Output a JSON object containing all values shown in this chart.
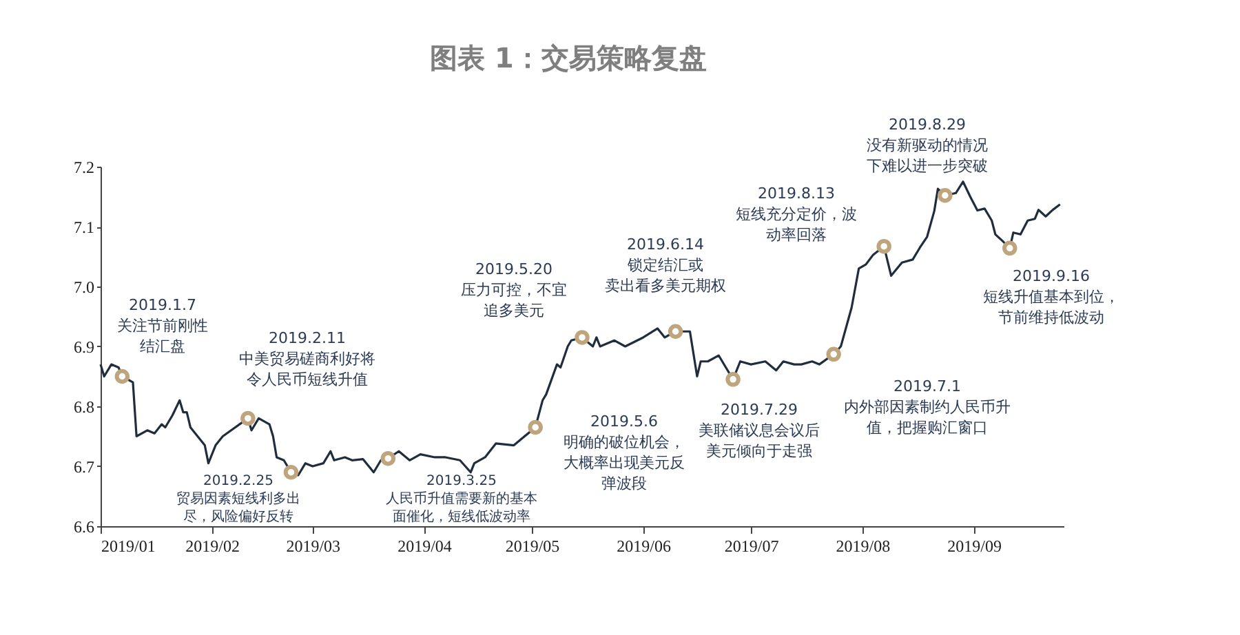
{
  "chart_data": {
    "type": "line",
    "title": "图表 1：交易策略复盘",
    "x": [
      "2019-01-01",
      "2019-01-02",
      "2019-01-04",
      "2019-01-06",
      "2019-01-07",
      "2019-01-10",
      "2019-01-11",
      "2019-01-14",
      "2019-01-16",
      "2019-01-18",
      "2019-01-19",
      "2019-01-21",
      "2019-01-23",
      "2019-01-24",
      "2019-01-25",
      "2019-01-26",
      "2019-01-30",
      "2019-01-31",
      "2019-02-02",
      "2019-02-04",
      "2019-02-11",
      "2019-02-12",
      "2019-02-14",
      "2019-02-17",
      "2019-02-18",
      "2019-02-19",
      "2019-02-21",
      "2019-02-23",
      "2019-02-25",
      "2019-02-27",
      "2019-03-01",
      "2019-03-04",
      "2019-03-06",
      "2019-03-07",
      "2019-03-10",
      "2019-03-12",
      "2019-03-15",
      "2019-03-18",
      "2019-03-20",
      "2019-03-22",
      "2019-03-25",
      "2019-03-28",
      "2019-03-31",
      "2019-04-04",
      "2019-04-07",
      "2019-04-11",
      "2019-04-14",
      "2019-04-15",
      "2019-04-18",
      "2019-04-21",
      "2019-04-26",
      "2019-05-02",
      "2019-05-04",
      "2019-05-05",
      "2019-05-08",
      "2019-05-09",
      "2019-05-11",
      "2019-05-12",
      "2019-05-15",
      "2019-05-18",
      "2019-05-19",
      "2019-05-20",
      "2019-05-24",
      "2019-05-27",
      "2019-06-01",
      "2019-06-05",
      "2019-06-07",
      "2019-06-10",
      "2019-06-14",
      "2019-06-16",
      "2019-06-17",
      "2019-06-19",
      "2019-06-22",
      "2019-06-24",
      "2019-06-26",
      "2019-06-28",
      "2019-07-01",
      "2019-07-05",
      "2019-07-08",
      "2019-07-10",
      "2019-07-13",
      "2019-07-15",
      "2019-07-18",
      "2019-07-20",
      "2019-07-24",
      "2019-07-26",
      "2019-07-29",
      "2019-07-31",
      "2019-08-02",
      "2019-08-04",
      "2019-08-07",
      "2019-08-09",
      "2019-08-12",
      "2019-08-15",
      "2019-08-17",
      "2019-08-19",
      "2019-08-21",
      "2019-08-22",
      "2019-08-24",
      "2019-08-27",
      "2019-08-29",
      "2019-08-31",
      "2019-09-02",
      "2019-09-04",
      "2019-09-06",
      "2019-09-07",
      "2019-09-09",
      "2019-09-11",
      "2019-09-12",
      "2019-09-14",
      "2019-09-16",
      "2019-09-18",
      "2019-09-19",
      "2019-09-21",
      "2019-09-23",
      "2019-09-25"
    ],
    "series": [
      {
        "color": "#1f2d3d",
        "values": [
          6.87,
          6.85,
          6.87,
          6.865,
          6.85,
          6.84,
          6.75,
          6.76,
          6.755,
          6.77,
          6.765,
          6.785,
          6.81,
          6.79,
          6.79,
          6.765,
          6.735,
          6.705,
          6.735,
          6.75,
          6.78,
          6.76,
          6.78,
          6.77,
          6.75,
          6.715,
          6.71,
          6.69,
          6.685,
          6.705,
          6.7,
          6.705,
          6.725,
          6.71,
          6.715,
          6.71,
          6.712,
          6.69,
          6.71,
          6.713,
          6.725,
          6.71,
          6.72,
          6.715,
          6.715,
          6.71,
          6.69,
          6.705,
          6.715,
          6.738,
          6.735,
          6.765,
          6.81,
          6.82,
          6.87,
          6.865,
          6.9,
          6.91,
          6.915,
          6.9,
          6.915,
          6.9,
          6.91,
          6.9,
          6.915,
          6.93,
          6.915,
          6.925,
          6.925,
          6.85,
          6.875,
          6.875,
          6.885,
          6.865,
          6.845,
          6.875,
          6.87,
          6.875,
          6.86,
          6.875,
          6.87,
          6.87,
          6.875,
          6.87,
          6.887,
          6.9,
          6.965,
          7.03,
          7.037,
          7.053,
          7.067,
          7.018,
          7.04,
          7.045,
          7.065,
          7.083,
          7.126,
          7.163,
          7.152,
          7.156,
          7.175,
          7.15,
          7.127,
          7.13,
          7.11,
          7.087,
          7.076,
          7.064,
          7.09,
          7.087,
          7.11,
          7.113,
          7.128,
          7.117,
          7.128,
          7.137
        ]
      }
    ],
    "xlim": [
      "2019-01-01",
      "2019-09-26"
    ],
    "xticks": [
      {
        "value": "2019-01-01",
        "label": "2019/01"
      },
      {
        "value": "2019-02-01",
        "label": "2019/02"
      },
      {
        "value": "2019-03-01",
        "label": "2019/03"
      },
      {
        "value": "2019-04-01",
        "label": "2019/04"
      },
      {
        "value": "2019-05-01",
        "label": "2019/05"
      },
      {
        "value": "2019-06-01",
        "label": "2019/06"
      },
      {
        "value": "2019-07-01",
        "label": "2019/07"
      },
      {
        "value": "2019-08-01",
        "label": "2019/08"
      },
      {
        "value": "2019-09-01",
        "label": "2019/09"
      }
    ],
    "ylim": [
      6.6,
      7.2
    ],
    "yticks": [
      6.6,
      6.7,
      6.8,
      6.9,
      {
        "value": 7.0,
        "label": "7.0"
      },
      7.1,
      7.2
    ],
    "grid": false,
    "marker": "none",
    "line_style": "solid",
    "annotations": [
      {
        "text": "2019.1.7\n关注节前刚性结汇盘",
        "x": "2019-01-07",
        "y": 6.85
      },
      {
        "text": "2019.2.11\n中美贸易磋商利好将令人民币短线升值",
        "x": "2019-02-11",
        "y": 6.78
      },
      {
        "text": "2019.2.25\n贸易因素短线利多出尽，风险偏好反转",
        "x": "2019-02-23",
        "y": 6.69
      },
      {
        "text": "2019.3.25\n人民币升值需要新的基本面催化，短线低波动率",
        "x": "2019-03-22",
        "y": 6.713
      },
      {
        "text": "2019.5.6\n明确的破位机会，大概率出现美元反弹波段",
        "x": "2019-05-02",
        "y": 6.765
      },
      {
        "text": "2019.5.20\n压力可控，不宜追多美元",
        "x": "2019-05-15",
        "y": 6.915
      },
      {
        "text": "2019.6.14\n锁定结汇或卖出看多美元期权",
        "x": "2019-06-10",
        "y": 6.925
      },
      {
        "text": "2019.7.1\n内外部因素制约人民币升值，把握购汇窗口",
        "x": "2019-07-24",
        "y": 6.887
      },
      {
        "text": "2019.7.29\n美联储议息会议后美元倾向于走强",
        "x": "2019-06-26",
        "y": 6.845
      },
      {
        "text": "2019.8.13\n短线充分定价，波动率回落",
        "x": "2019-08-07",
        "y": 7.067
      },
      {
        "text": "2019.8.29\n没有新驱动的情况下难以进一步突破",
        "x": "2019-08-24",
        "y": 7.152
      },
      {
        "text": "2019.9.16\n短线升值基本到位，节前维持低波动",
        "x": "2019-09-11",
        "y": 7.064
      }
    ]
  }
}
